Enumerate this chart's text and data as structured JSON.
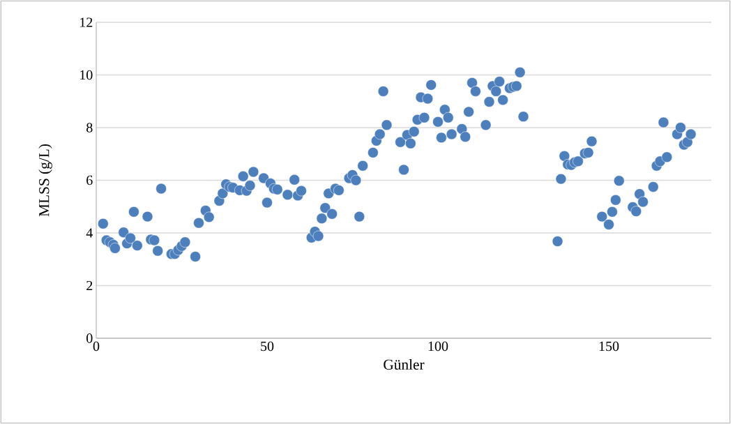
{
  "chart_data": {
    "type": "scatter",
    "xlabel": "Günler",
    "ylabel": "MLSS (g/L)",
    "xlim": [
      0,
      180
    ],
    "xticks": [
      0,
      50,
      100,
      150
    ],
    "ylim": [
      0,
      12
    ],
    "yticks": [
      0,
      2,
      4,
      6,
      8,
      10,
      12
    ],
    "grid": "y",
    "marker": "circle",
    "series": [
      {
        "color": "#4e7fbd",
        "x": [
          2,
          3,
          4,
          5,
          5.5,
          8,
          9,
          10,
          11,
          12,
          15,
          16,
          17,
          18,
          19,
          22,
          23,
          24,
          25,
          26,
          29,
          30,
          32,
          33,
          36,
          37,
          38,
          39,
          40,
          42,
          43,
          44,
          45,
          46,
          49,
          50,
          51,
          52,
          53,
          56,
          58,
          59,
          60,
          63,
          64,
          65,
          66,
          67,
          68,
          69,
          70,
          71,
          74,
          75,
          76,
          77,
          78,
          81,
          82,
          83,
          84,
          85,
          89,
          90,
          91,
          92,
          93,
          94,
          95,
          96,
          97,
          98,
          100,
          101,
          102,
          103,
          104,
          107,
          108,
          109,
          110,
          111,
          114,
          115,
          116,
          117,
          118,
          119,
          121,
          122,
          123,
          124,
          125,
          135,
          136,
          137,
          138,
          139,
          140,
          141,
          143,
          144,
          145,
          148,
          150,
          151,
          152,
          153,
          157,
          158,
          159,
          160,
          163,
          164,
          165,
          166,
          167,
          170,
          171,
          172,
          173,
          174
        ],
        "values": [
          4.35,
          3.72,
          3.65,
          3.55,
          3.42,
          4.02,
          3.6,
          3.8,
          4.8,
          3.52,
          4.62,
          3.75,
          3.72,
          3.32,
          5.68,
          3.2,
          3.2,
          3.35,
          3.5,
          3.65,
          3.1,
          4.38,
          4.85,
          4.6,
          5.22,
          5.5,
          5.85,
          5.75,
          5.72,
          5.62,
          6.15,
          5.6,
          5.8,
          6.32,
          6.08,
          5.15,
          5.88,
          5.68,
          5.65,
          5.45,
          6.02,
          5.42,
          5.6,
          3.82,
          4.05,
          3.88,
          4.55,
          4.95,
          5.5,
          4.72,
          5.68,
          5.62,
          6.08,
          6.2,
          6.0,
          4.62,
          6.55,
          7.05,
          7.5,
          7.75,
          9.38,
          8.1,
          7.45,
          6.4,
          7.72,
          7.4,
          7.85,
          8.3,
          9.15,
          8.38,
          9.1,
          9.62,
          8.22,
          7.62,
          8.68,
          8.38,
          7.75,
          7.95,
          7.65,
          8.6,
          9.7,
          9.38,
          8.1,
          8.98,
          9.58,
          9.38,
          9.75,
          9.05,
          9.5,
          9.55,
          9.58,
          10.1,
          8.42,
          3.68,
          6.05,
          6.92,
          6.6,
          6.58,
          6.68,
          6.72,
          7.02,
          7.05,
          7.48,
          4.62,
          4.32,
          4.8,
          5.25,
          5.98,
          4.98,
          4.82,
          5.48,
          5.18,
          5.75,
          6.55,
          6.72,
          8.2,
          6.88,
          7.75,
          8.0,
          7.35,
          7.45,
          7.75
        ]
      }
    ]
  }
}
